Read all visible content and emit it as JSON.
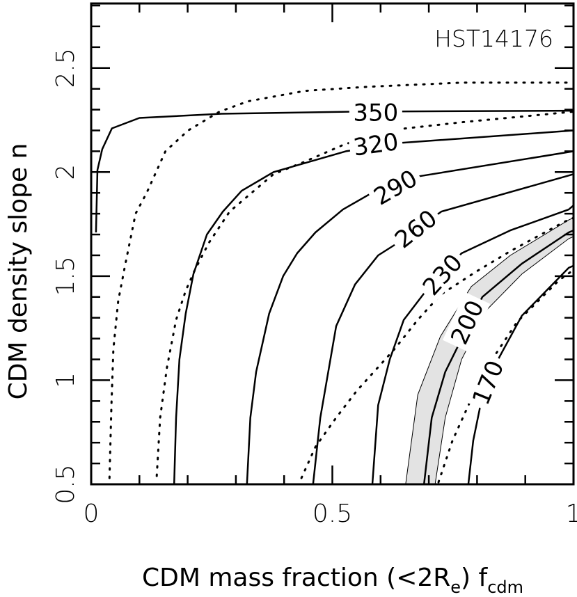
{
  "chart_data": {
    "type": "contour",
    "title": "HST14176",
    "xlabel": {
      "main": "CDM mass fraction (<2R",
      "sub1": "e",
      "mid": ") f",
      "sub2": "cdm"
    },
    "ylabel": "CDM density slope n",
    "xlim": [
      0,
      1
    ],
    "ylim": [
      0.5,
      2.81
    ],
    "xticks": [
      {
        "v": 0,
        "label": "0"
      },
      {
        "v": 0.5,
        "label": "0.5"
      },
      {
        "v": 1,
        "label": "1"
      }
    ],
    "yticks": [
      {
        "v": 0.5,
        "label": "0.5"
      },
      {
        "v": 1,
        "label": "1"
      },
      {
        "v": 1.5,
        "label": "1.5"
      },
      {
        "v": 2,
        "label": "2"
      },
      {
        "v": 2.5,
        "label": "2.5"
      }
    ],
    "minor_x_step": 0.1,
    "minor_y_step": 0.1,
    "band_color": "#e3e3e3",
    "band": {
      "level": "200",
      "lower": [
        [
          0.652,
          0.5
        ],
        [
          0.677,
          0.93
        ],
        [
          0.724,
          1.21
        ],
        [
          0.788,
          1.45
        ],
        [
          0.869,
          1.6
        ],
        [
          0.99,
          1.77
        ],
        [
          1.0,
          1.78
        ]
      ],
      "upper": [
        [
          0.713,
          0.5
        ],
        [
          0.734,
          0.82
        ],
        [
          0.768,
          1.1
        ],
        [
          0.821,
          1.34
        ],
        [
          0.893,
          1.51
        ],
        [
          0.99,
          1.68
        ],
        [
          1.0,
          1.69
        ]
      ]
    },
    "solid_contours": [
      {
        "level": "350",
        "label_at": [
          0.59,
          2.29
        ],
        "angle": 0,
        "points": [
          [
            0.01,
            1.71
          ],
          [
            0.013,
            2.01
          ],
          [
            0.023,
            2.11
          ],
          [
            0.043,
            2.21
          ],
          [
            0.1,
            2.26
          ],
          [
            0.27,
            2.28
          ],
          [
            0.54,
            2.29
          ],
          [
            1.0,
            2.295
          ]
        ]
      },
      {
        "level": "320",
        "label_at": [
          0.59,
          2.137
        ],
        "angle": -8,
        "points": [
          [
            0.172,
            0.5
          ],
          [
            0.176,
            0.82
          ],
          [
            0.183,
            1.1
          ],
          [
            0.196,
            1.32
          ],
          [
            0.212,
            1.51
          ],
          [
            0.24,
            1.7
          ],
          [
            0.273,
            1.81
          ],
          [
            0.312,
            1.91
          ],
          [
            0.378,
            2.0
          ],
          [
            0.528,
            2.1
          ],
          [
            0.641,
            2.14
          ],
          [
            1.0,
            2.2
          ]
        ]
      },
      {
        "level": "290",
        "label_at": [
          0.63,
          1.93
        ],
        "angle": -30,
        "points": [
          [
            0.323,
            0.5
          ],
          [
            0.33,
            0.82
          ],
          [
            0.342,
            1.04
          ],
          [
            0.369,
            1.32
          ],
          [
            0.398,
            1.5
          ],
          [
            0.427,
            1.61
          ],
          [
            0.465,
            1.71
          ],
          [
            0.522,
            1.82
          ],
          [
            0.582,
            1.9
          ],
          [
            0.68,
            1.98
          ],
          [
            1.0,
            2.1
          ]
        ]
      },
      {
        "level": "260",
        "label_at": [
          0.672,
          1.73
        ],
        "angle": -38,
        "points": [
          [
            0.46,
            0.5
          ],
          [
            0.475,
            0.82
          ],
          [
            0.508,
            1.26
          ],
          [
            0.547,
            1.46
          ],
          [
            0.595,
            1.6
          ],
          [
            0.629,
            1.65
          ],
          [
            0.726,
            1.81
          ],
          [
            1.0,
            1.99
          ]
        ]
      },
      {
        "level": "230",
        "label_at": [
          0.727,
          1.51
        ],
        "angle": -48,
        "points": [
          [
            0.583,
            0.5
          ],
          [
            0.595,
            0.88
          ],
          [
            0.619,
            1.1
          ],
          [
            0.648,
            1.29
          ],
          [
            0.691,
            1.42
          ],
          [
            0.768,
            1.61
          ],
          [
            0.869,
            1.72
          ],
          [
            0.99,
            1.82
          ],
          [
            1.0,
            1.84
          ]
        ]
      },
      {
        "level": "200",
        "label_at": [
          0.778,
          1.28
        ],
        "angle": -65,
        "points": [
          [
            0.69,
            0.5
          ],
          [
            0.706,
            0.82
          ],
          [
            0.734,
            1.04
          ],
          [
            0.811,
            1.4
          ],
          [
            0.893,
            1.56
          ],
          [
            0.99,
            1.71
          ],
          [
            1.0,
            1.72
          ]
        ]
      },
      {
        "level": "170",
        "label_at": [
          0.821,
          0.99
        ],
        "angle": -68,
        "points": [
          [
            0.782,
            0.5
          ],
          [
            0.792,
            0.71
          ],
          [
            0.807,
            0.88
          ],
          [
            0.846,
            1.11
          ],
          [
            0.893,
            1.31
          ],
          [
            0.99,
            1.54
          ],
          [
            1.0,
            1.55
          ]
        ]
      }
    ],
    "dotted_contours": [
      {
        "points": [
          [
            0.038,
            0.53
          ],
          [
            0.042,
            0.88
          ],
          [
            0.046,
            1.15
          ],
          [
            0.056,
            1.38
          ],
          [
            0.071,
            1.56
          ],
          [
            0.092,
            1.8
          ],
          [
            0.115,
            1.9
          ],
          [
            0.154,
            2.1
          ],
          [
            0.201,
            2.2
          ],
          [
            0.266,
            2.29
          ],
          [
            0.325,
            2.34
          ],
          [
            0.443,
            2.39
          ],
          [
            0.574,
            2.41
          ],
          [
            0.771,
            2.43
          ],
          [
            1.0,
            2.43
          ]
        ]
      },
      {
        "points": [
          [
            0.136,
            0.54
          ],
          [
            0.143,
            0.82
          ],
          [
            0.157,
            1.06
          ],
          [
            0.176,
            1.29
          ],
          [
            0.196,
            1.43
          ],
          [
            0.215,
            1.53
          ],
          [
            0.244,
            1.66
          ],
          [
            0.287,
            1.81
          ],
          [
            0.378,
            1.99
          ],
          [
            0.443,
            2.05
          ],
          [
            0.522,
            2.13
          ],
          [
            0.613,
            2.2
          ],
          [
            0.771,
            2.24
          ],
          [
            1.0,
            2.29
          ]
        ]
      },
      {
        "points": [
          [
            0.436,
            0.53
          ],
          [
            0.465,
            0.68
          ],
          [
            0.508,
            0.82
          ],
          [
            0.551,
            0.95
          ],
          [
            0.59,
            1.05
          ],
          [
            0.629,
            1.15
          ],
          [
            0.677,
            1.29
          ],
          [
            0.724,
            1.41
          ],
          [
            0.797,
            1.52
          ],
          [
            0.869,
            1.62
          ],
          [
            0.98,
            1.76
          ],
          [
            1.0,
            1.78
          ]
        ]
      },
      {
        "points": [
          [
            0.72,
            0.51
          ],
          [
            0.749,
            0.71
          ],
          [
            0.788,
            0.91
          ],
          [
            0.84,
            1.13
          ],
          [
            0.883,
            1.28
          ],
          [
            0.97,
            1.48
          ],
          [
            1.0,
            1.53
          ]
        ]
      }
    ]
  }
}
